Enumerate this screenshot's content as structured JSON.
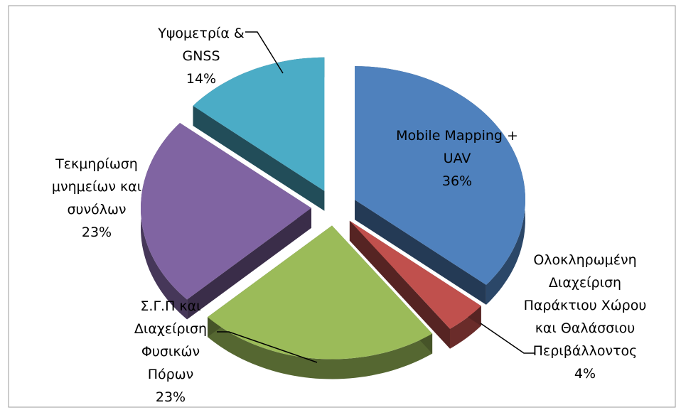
{
  "chart_data": {
    "type": "pie",
    "categories": [
      "Mobile Mapping + UAV",
      "Ολοκληρωμένη Διαχείριση Παράκτιου Χώρου και Θαλάσσιου Περιβάλλοντος",
      "Σ.Γ.Π και Διαχείριση Φυσικών Πόρων",
      "Τεκμηρίωση μνημείων και συνόλων",
      "Υψομετρία & GNSS"
    ],
    "values": [
      36,
      4,
      23,
      23,
      14
    ],
    "value_labels": [
      "36%",
      "4%",
      "23%",
      "23%",
      "14%"
    ],
    "colors": [
      "#4f81bd",
      "#c0504d",
      "#9bbb59",
      "#8064a2",
      "#4bacc6"
    ]
  }
}
